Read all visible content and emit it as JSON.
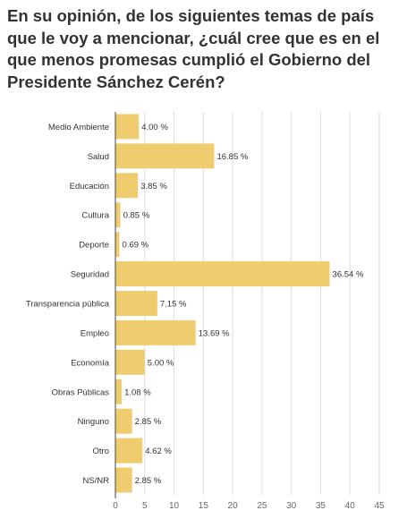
{
  "title": "En su opinión, de los siguientes temas de país que le voy a mencionar, ¿cuál cree que es en el que menos promesas cumplió el Gobierno del Presidente Sánchez Cerén?",
  "colors": {
    "bar": "#efcd6e",
    "grid": "#dddddd",
    "axis": "#444444"
  },
  "chart_data": {
    "type": "bar",
    "orientation": "horizontal",
    "categories": [
      "Medio Ambiente",
      "Salud",
      "Educación",
      "Cultura",
      "Deporte",
      "Seguridad",
      "Transparencia pública",
      "Empleo",
      "Economía",
      "Obras Públicas",
      "Ninguno",
      "Otro",
      "NS/NR"
    ],
    "values": [
      4.0,
      16.85,
      3.85,
      0.85,
      0.69,
      36.54,
      7.15,
      13.69,
      5.0,
      1.08,
      2.85,
      4.62,
      2.85
    ],
    "value_labels": [
      "4.00 %",
      "16.85 %",
      "3.85 %",
      "0.85 %",
      "0.69 %",
      "36.54 %",
      "7.15 %",
      "13.69 %",
      "5.00 %",
      "1.08 %",
      "2.85 %",
      "4.62 %",
      "2.85 %"
    ],
    "xlim": [
      0,
      45
    ],
    "ticks": [
      0,
      5,
      10,
      15,
      20,
      25,
      30,
      35,
      40,
      45
    ],
    "tick_labels": [
      "0",
      "5",
      "10",
      "15",
      "20",
      "25",
      "30",
      "35",
      "40",
      "45"
    ],
    "grid": true,
    "legend": "none"
  }
}
